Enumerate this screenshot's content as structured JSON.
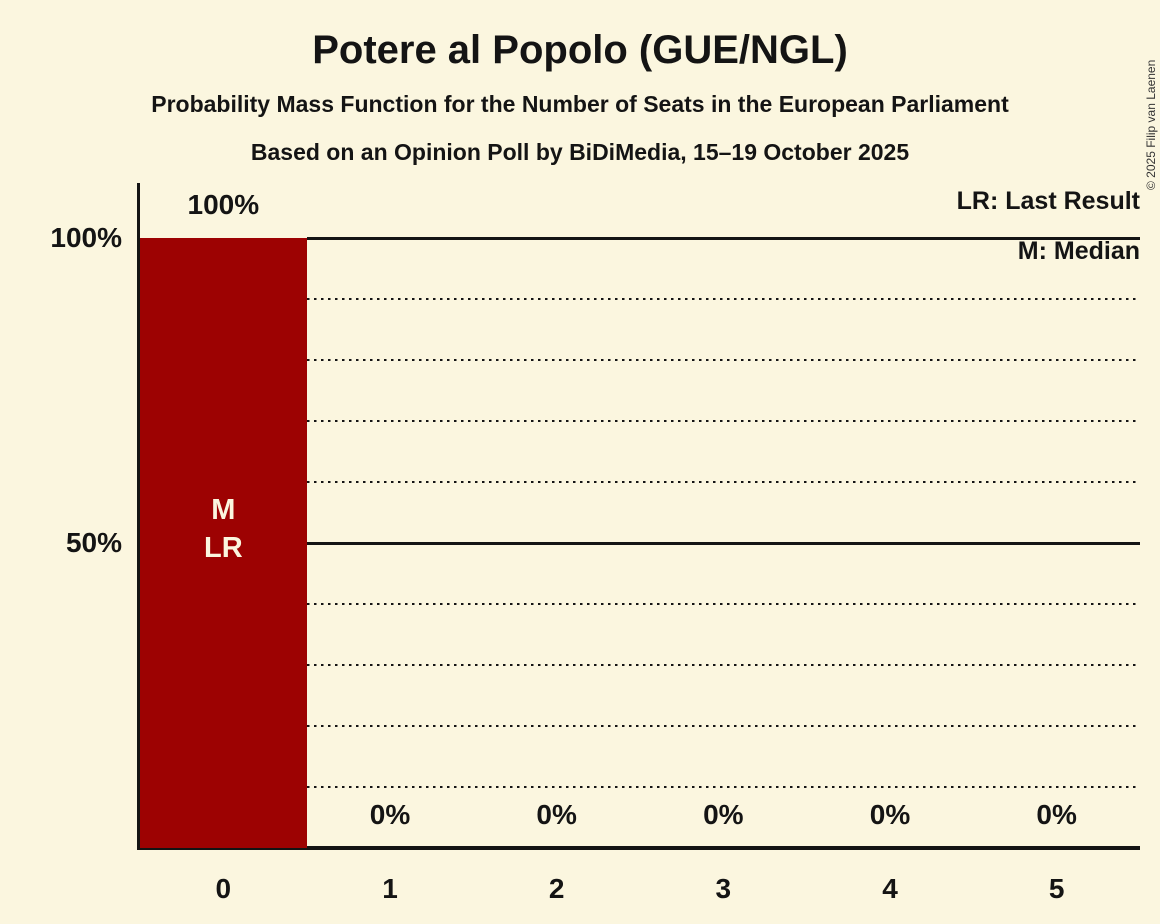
{
  "title": "Potere al Popolo (GUE/NGL)",
  "subtitle": "Probability Mass Function for the Number of Seats in the European Parliament",
  "source_line": "Based on an Opinion Poll by BiDiMedia, 15–19 October 2025",
  "legend": {
    "lr": "LR: Last Result",
    "m": "M: Median"
  },
  "copyright": "© 2025 Filip van Laenen",
  "y_axis": {
    "labels": [
      {
        "value": 100,
        "text": "100%"
      },
      {
        "value": 50,
        "text": "50%"
      }
    ]
  },
  "chart_data": {
    "type": "bar",
    "title": "Potere al Popolo (GUE/NGL)",
    "categories": [
      "0",
      "1",
      "2",
      "3",
      "4",
      "5"
    ],
    "values": [
      100,
      0,
      0,
      0,
      0,
      0
    ],
    "value_labels": [
      "100%",
      "0%",
      "0%",
      "0%",
      "0%",
      "0%"
    ],
    "bar_annotations": [
      {
        "category": "0",
        "lines": [
          "M",
          "LR"
        ]
      }
    ],
    "xlabel": "",
    "ylabel": "",
    "ylim": [
      0,
      100
    ],
    "gridlines": {
      "solid": [
        50,
        100
      ],
      "dotted": [
        10,
        20,
        30,
        40,
        60,
        70,
        80,
        90
      ]
    },
    "legend_position": "top-right",
    "colors": {
      "bar": "#9D0202",
      "background": "#FBF6DF",
      "text": "#141414",
      "bar_label": "#FBF6DF"
    }
  }
}
